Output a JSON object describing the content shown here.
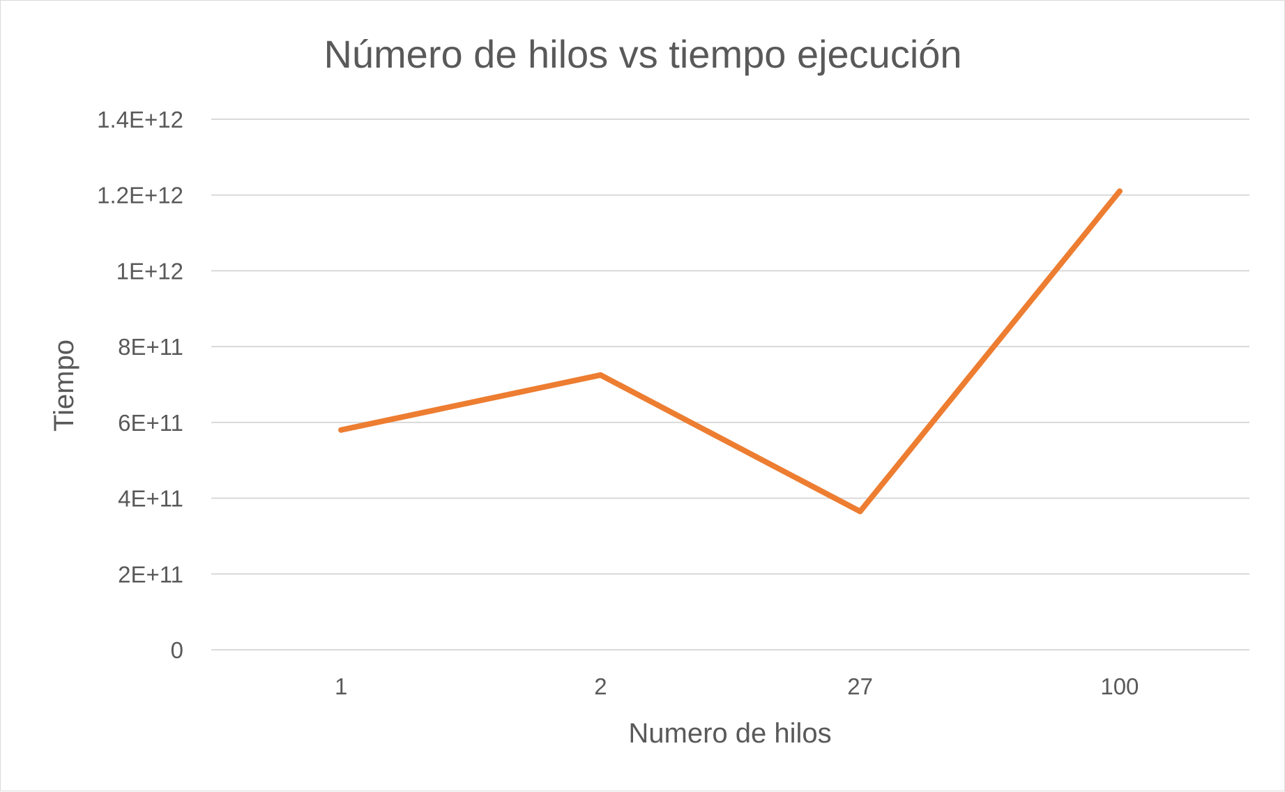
{
  "chart_data": {
    "type": "line",
    "title": "Número de hilos vs tiempo ejecución",
    "xlabel": "Numero de hilos",
    "ylabel": "Tiempo",
    "categories": [
      "1",
      "2",
      "27",
      "100"
    ],
    "series": [
      {
        "values": [
          580000000000,
          725000000000,
          365000000000,
          1210000000000
        ],
        "color": "#ed7d31"
      }
    ],
    "ylim": [
      0,
      1400000000000
    ],
    "yticks": [
      0,
      200000000000,
      400000000000,
      600000000000,
      800000000000,
      1000000000000,
      1200000000000,
      1400000000000
    ],
    "ytick_labels": [
      "0",
      "2E+11",
      "4E+11",
      "6E+11",
      "8E+11",
      "1E+12",
      "1.2E+12",
      "1.4E+12"
    ],
    "grid": true,
    "legend": "none"
  }
}
